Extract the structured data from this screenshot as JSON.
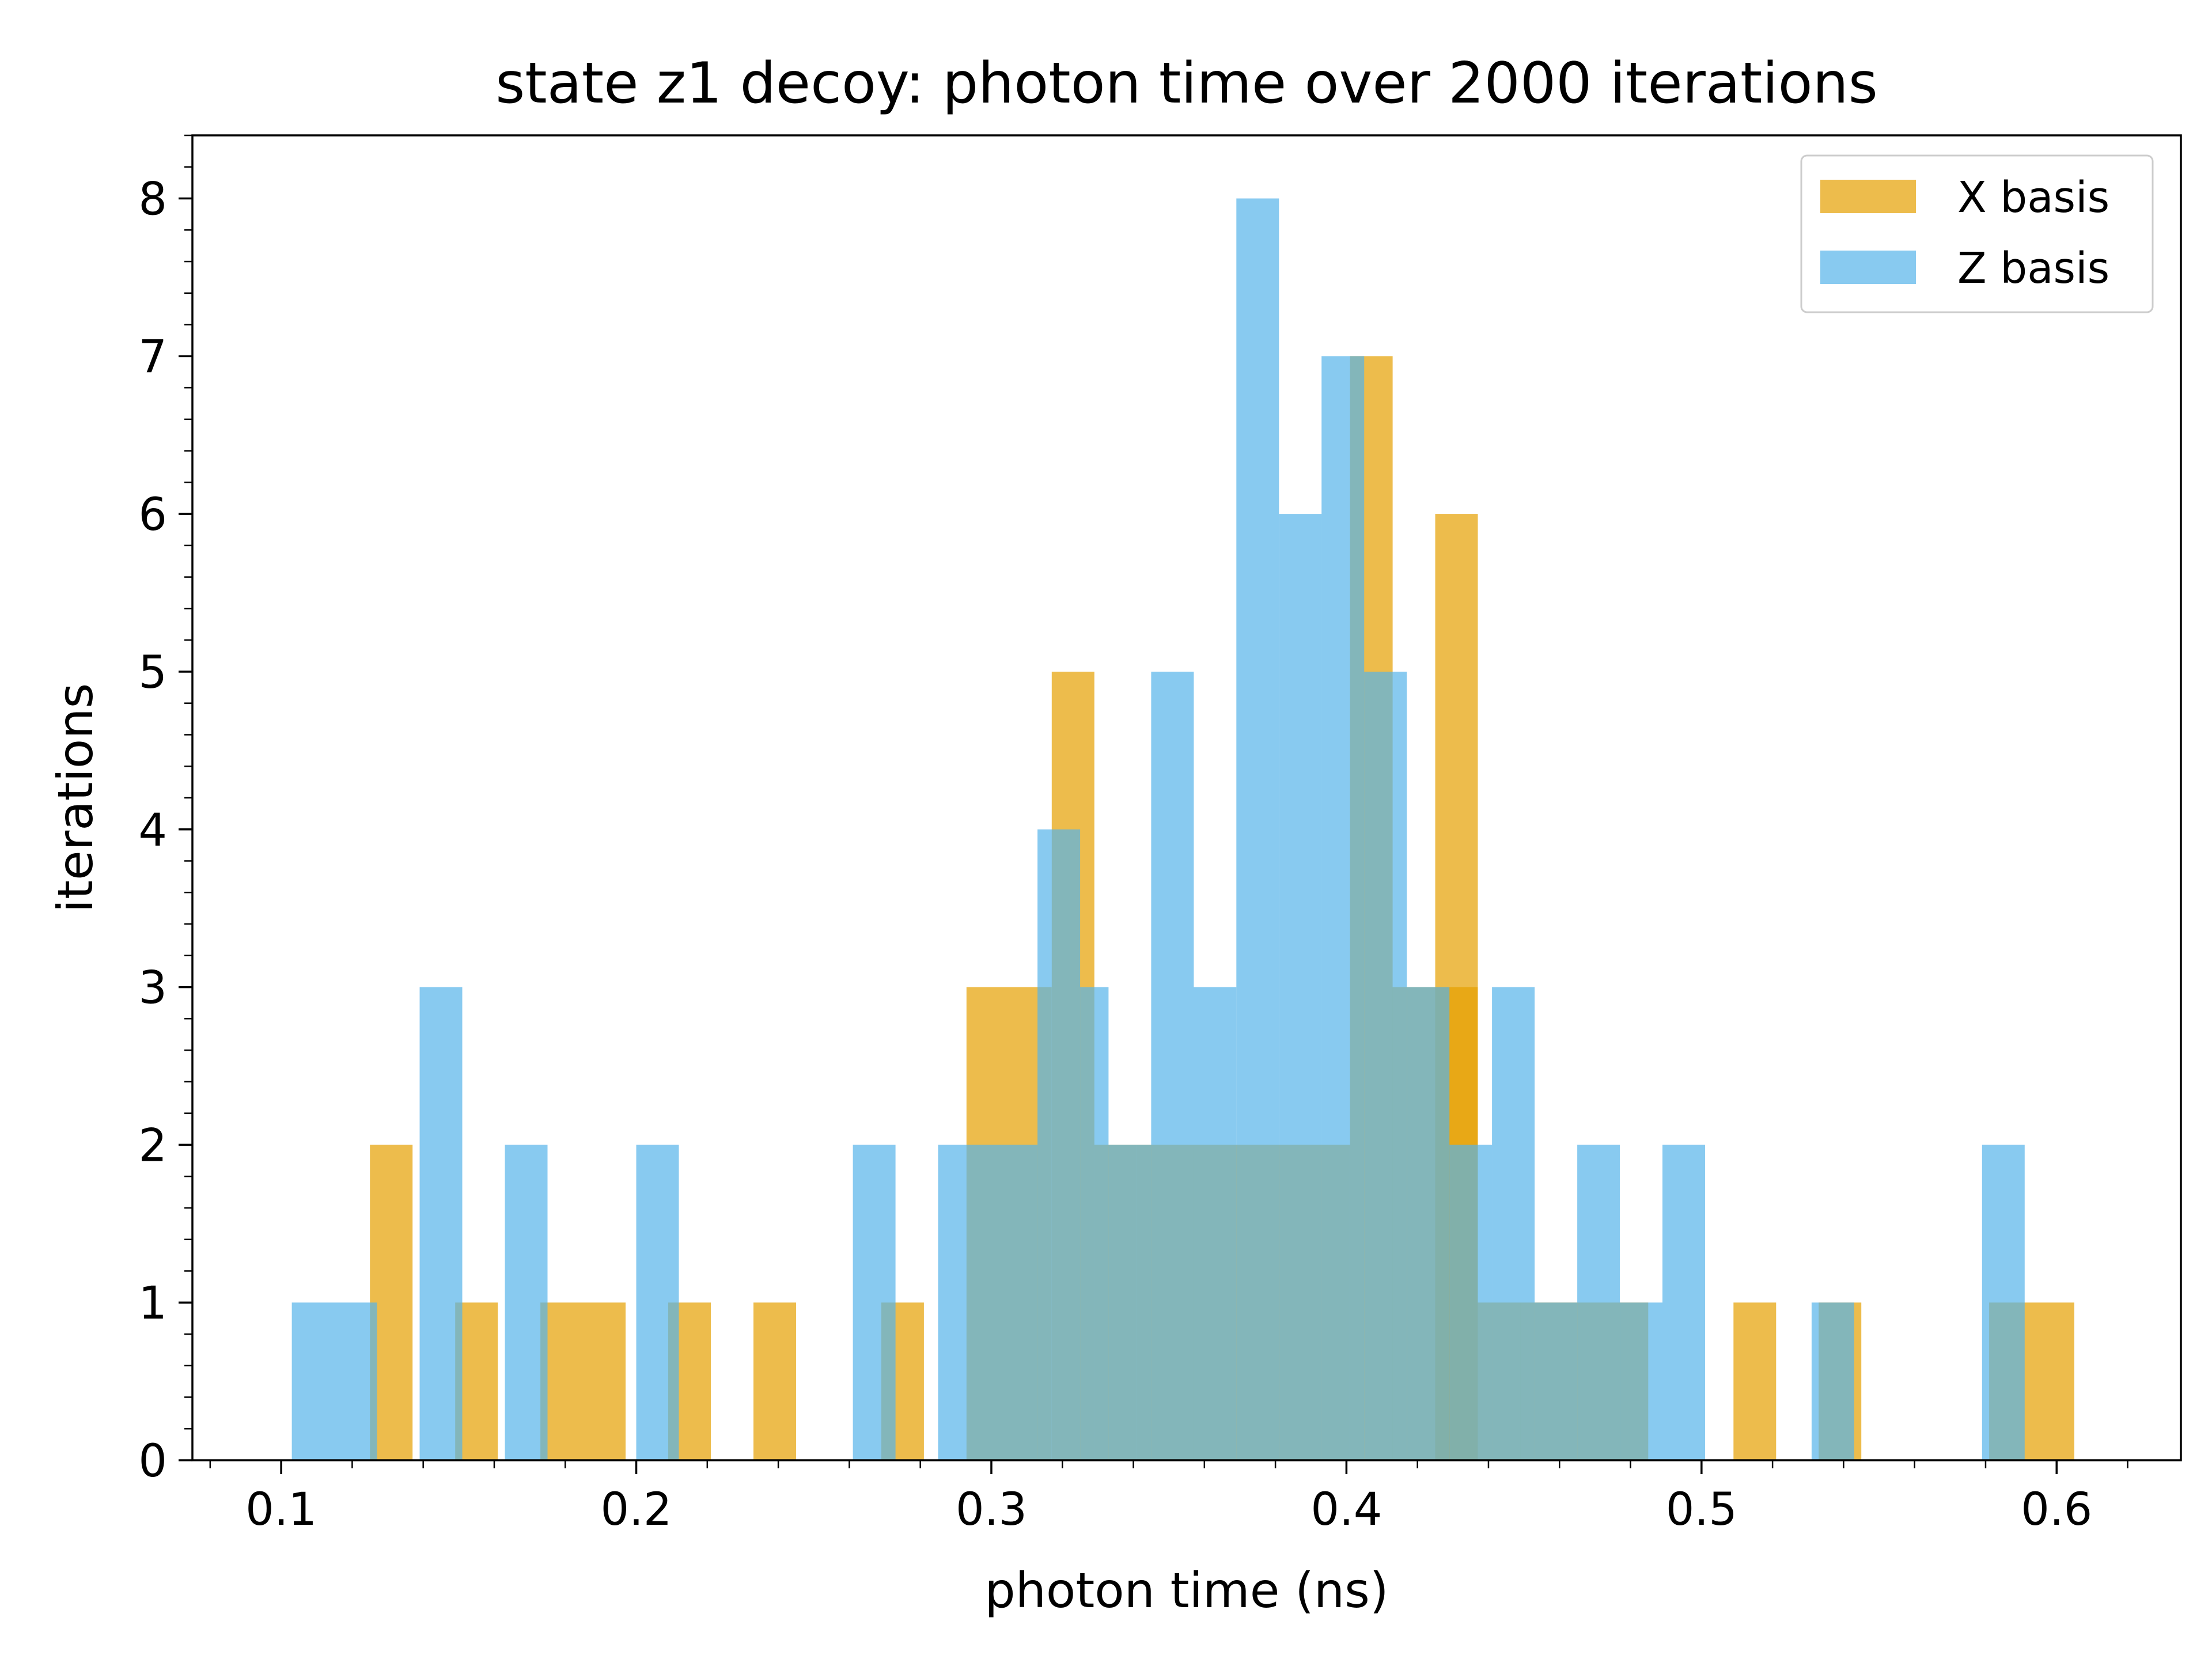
{
  "chart_data": {
    "type": "bar",
    "title": "state z1 decoy: photon time over 2000 iterations",
    "xlabel": "photon time (ns)",
    "ylabel": "iterations",
    "xlim": [
      0.075,
      0.635
    ],
    "ylim": [
      0,
      8.4
    ],
    "xticks": [
      "0.1",
      "0.2",
      "0.3",
      "0.4",
      "0.5",
      "0.6"
    ],
    "yticks": [
      "0",
      "1",
      "2",
      "3",
      "4",
      "5",
      "6",
      "7",
      "8"
    ],
    "legend_position": "top-right",
    "grid": false,
    "series": [
      {
        "name": "X basis",
        "color": "#E69F00",
        "opacity": 0.7,
        "bins": [
          [
            0.125,
            0.137,
            2
          ],
          [
            0.149,
            0.161,
            1
          ],
          [
            0.173,
            0.197,
            1
          ],
          [
            0.209,
            0.221,
            1
          ],
          [
            0.233,
            0.245,
            1
          ],
          [
            0.269,
            0.281,
            1
          ],
          [
            0.293,
            0.317,
            3
          ],
          [
            0.317,
            0.329,
            5
          ],
          [
            0.329,
            0.341,
            2
          ],
          [
            0.341,
            0.401,
            2
          ],
          [
            0.401,
            0.413,
            7
          ],
          [
            0.413,
            0.437,
            3
          ],
          [
            0.425,
            0.437,
            6
          ],
          [
            0.437,
            0.449,
            1
          ],
          [
            0.449,
            0.485,
            1
          ],
          [
            0.509,
            0.521,
            1
          ],
          [
            0.533,
            0.545,
            1
          ],
          [
            0.581,
            0.605,
            1
          ]
        ]
      },
      {
        "name": "Z basis",
        "color": "#56B4E9",
        "opacity": 0.7,
        "bins": [
          [
            0.103,
            0.127,
            1
          ],
          [
            0.139,
            0.151,
            3
          ],
          [
            0.163,
            0.175,
            2
          ],
          [
            0.2,
            0.212,
            2
          ],
          [
            0.261,
            0.273,
            2
          ],
          [
            0.285,
            0.297,
            2
          ],
          [
            0.297,
            0.313,
            2
          ],
          [
            0.313,
            0.325,
            4
          ],
          [
            0.325,
            0.333,
            3
          ],
          [
            0.333,
            0.345,
            2
          ],
          [
            0.345,
            0.357,
            5
          ],
          [
            0.357,
            0.369,
            3
          ],
          [
            0.369,
            0.381,
            8
          ],
          [
            0.381,
            0.393,
            6
          ],
          [
            0.393,
            0.405,
            7
          ],
          [
            0.405,
            0.417,
            5
          ],
          [
            0.417,
            0.429,
            3
          ],
          [
            0.429,
            0.441,
            2
          ],
          [
            0.441,
            0.453,
            3
          ],
          [
            0.453,
            0.465,
            1
          ],
          [
            0.465,
            0.477,
            2
          ],
          [
            0.477,
            0.489,
            1
          ],
          [
            0.489,
            0.501,
            2
          ],
          [
            0.531,
            0.543,
            1
          ],
          [
            0.579,
            0.591,
            2
          ]
        ]
      }
    ]
  }
}
